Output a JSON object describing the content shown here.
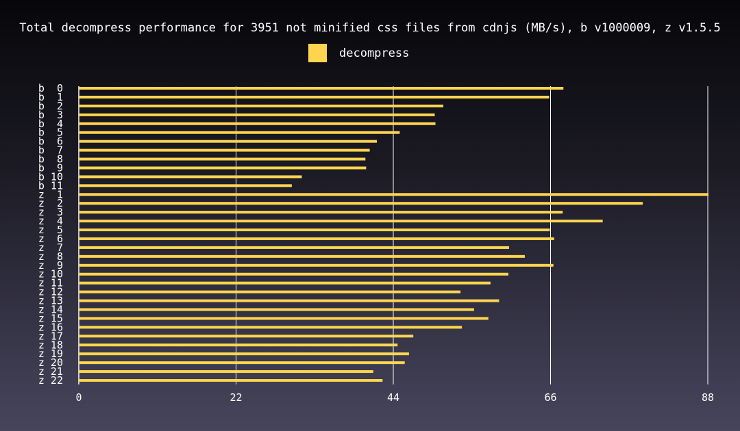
{
  "chart_data": {
    "type": "bar",
    "orientation": "horizontal",
    "title": "Total decompress performance for 3951 not minified css files from cdnjs (MB/s), b v1000009, z v1.5.5",
    "legend": {
      "position": "top-center",
      "entries": [
        "decompress"
      ]
    },
    "categories": [
      "b  0",
      "b  1",
      "b  2",
      "b  3",
      "b  4",
      "b  5",
      "b  6",
      "b  7",
      "b  8",
      "b  9",
      "b 10",
      "b 11",
      "z  1",
      "z  2",
      "z  3",
      "z  4",
      "z  5",
      "z  6",
      "z  7",
      "z  8",
      "z  9",
      "z 10",
      "z 11",
      "z 12",
      "z 13",
      "z 14",
      "z 15",
      "z 16",
      "z 17",
      "z 18",
      "z 19",
      "z 20",
      "z 21",
      "z 22"
    ],
    "series": [
      {
        "name": "decompress",
        "values": [
          67.8,
          65.8,
          51.0,
          49.8,
          49.9,
          44.9,
          41.7,
          40.7,
          40.1,
          40.2,
          31.2,
          29.8,
          88.1,
          78.9,
          67.7,
          73.3,
          65.9,
          66.5,
          60.2,
          62.4,
          66.4,
          60.1,
          57.6,
          53.4,
          58.8,
          55.3,
          57.3,
          53.6,
          46.8,
          44.6,
          46.2,
          45.6,
          41.2,
          42.5
        ]
      }
    ],
    "xlim": [
      0,
      88
    ],
    "xticks": [
      0,
      22,
      44,
      66,
      88
    ],
    "grid": true,
    "colors": {
      "bar": "#ffd54f",
      "grid": "#ffffff",
      "text": "#ffffff"
    }
  }
}
